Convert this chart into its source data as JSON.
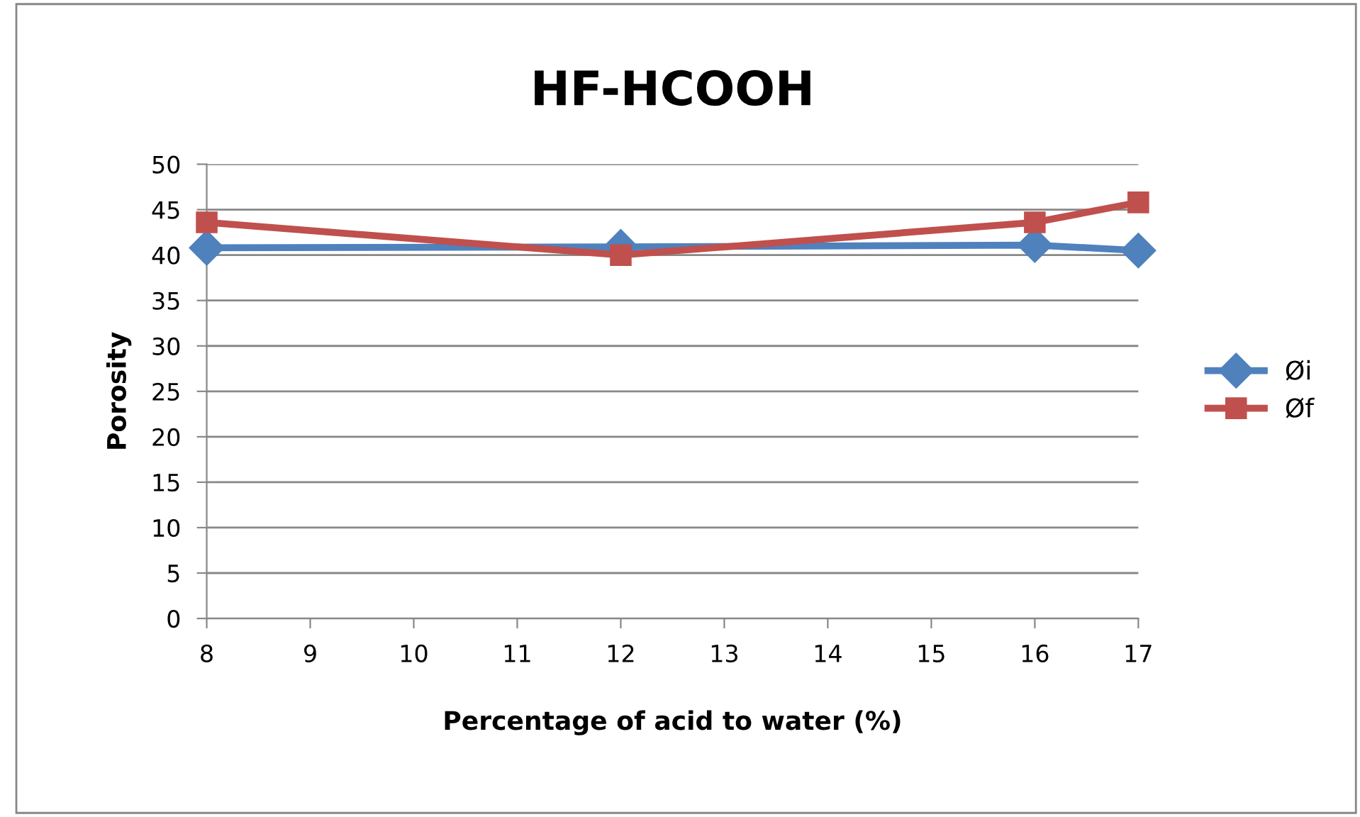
{
  "chart_data": {
    "type": "line",
    "title": "HF-HCOOH",
    "xlabel": "Percentage of acid to water (%)",
    "ylabel": "Porosity",
    "x": [
      8,
      12,
      16,
      17
    ],
    "series": [
      {
        "name": "Øi",
        "color": "#4f81bd",
        "marker": "diamond",
        "values": [
          40.8,
          40.9,
          41.1,
          40.5
        ]
      },
      {
        "name": "Øf",
        "color": "#c0504d",
        "marker": "square",
        "values": [
          43.6,
          40.0,
          43.6,
          45.8
        ]
      }
    ],
    "xlim": [
      8,
      17
    ],
    "xticks": [
      8,
      9,
      10,
      11,
      12,
      13,
      14,
      15,
      16,
      17
    ],
    "ylim": [
      0,
      50
    ],
    "yticks": [
      0,
      5,
      10,
      15,
      20,
      25,
      30,
      35,
      40,
      45,
      50
    ],
    "grid": "y",
    "legend": "right",
    "line_style": "solid"
  }
}
